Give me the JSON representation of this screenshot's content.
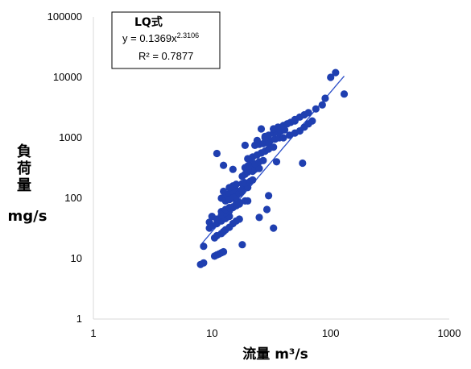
{
  "chart_data": {
    "type": "scatter",
    "title": "",
    "xlabel": "流量 m³/s",
    "ylabel_lines": [
      "負",
      "荷",
      "量",
      "mg/s"
    ],
    "x_scale": "log",
    "y_scale": "log",
    "xlim": [
      1,
      1000
    ],
    "ylim": [
      1,
      100000
    ],
    "x_ticks": [
      "1",
      "10",
      "100",
      "1000"
    ],
    "y_ticks": [
      "1",
      "10",
      "100",
      "1000",
      "10000",
      "100000"
    ],
    "grid": false,
    "marker_color": "#1f3fb0",
    "trend_color": "#2c4fc8",
    "legend": {
      "placement": "top-left",
      "title": "LQ式",
      "equation": "y = 0.1369x",
      "exponent": "2.3106",
      "r2": "R² = 0.7877"
    },
    "trendline": {
      "a": 0.1369,
      "b": 2.3106,
      "x_range": [
        8,
        130
      ]
    },
    "series": [
      {
        "x": [
          8,
          8.5,
          8.5,
          9.5,
          10,
          10.5,
          11,
          11.5,
          12,
          12.5,
          10.5,
          11,
          12,
          12.5,
          13,
          14,
          15,
          16,
          17,
          9.5,
          10,
          11,
          12,
          13,
          14,
          11,
          12,
          13,
          14,
          15,
          16,
          17,
          19,
          12,
          13,
          14,
          15,
          16,
          17,
          12,
          13,
          14,
          15,
          16,
          18,
          13,
          14,
          15,
          16,
          17,
          18,
          20,
          14,
          15,
          16,
          18,
          19,
          21,
          22,
          18,
          19,
          20,
          22,
          23,
          25,
          19,
          20,
          21,
          23,
          25,
          27,
          20,
          22,
          24,
          26,
          28,
          30,
          33,
          23,
          25,
          27,
          29,
          31,
          34,
          37,
          28,
          30,
          33,
          35,
          38,
          41,
          33,
          36,
          40,
          43,
          46,
          50,
          40,
          45,
          50,
          55,
          60,
          65,
          70,
          50,
          55,
          60,
          65,
          75,
          85,
          90,
          100,
          110,
          130,
          58,
          11,
          12.5,
          12.5,
          18,
          20,
          25,
          29,
          30,
          30,
          33,
          33,
          35,
          28,
          24,
          26,
          21,
          19,
          15
        ],
        "y": [
          8,
          8.5,
          16,
          40,
          50,
          11,
          11.5,
          12,
          12.5,
          13,
          22,
          24,
          26,
          28,
          30,
          33,
          38,
          42,
          45,
          32,
          35,
          38,
          42,
          46,
          50,
          45,
          52,
          58,
          62,
          70,
          75,
          80,
          90,
          60,
          65,
          70,
          72,
          80,
          85,
          100,
          110,
          120,
          130,
          135,
          140,
          90,
          95,
          100,
          105,
          120,
          130,
          150,
          150,
          160,
          170,
          175,
          180,
          190,
          200,
          230,
          250,
          270,
          280,
          300,
          310,
          320,
          340,
          350,
          370,
          400,
          420,
          450,
          480,
          520,
          560,
          600,
          650,
          700,
          750,
          780,
          800,
          850,
          900,
          950,
          1000,
          1050,
          1100,
          1200,
          1250,
          1300,
          1350,
          1400,
          1500,
          1600,
          1700,
          1800,
          1900,
          1000,
          1100,
          1200,
          1300,
          1500,
          1700,
          1900,
          2000,
          2200,
          2400,
          2600,
          3000,
          3500,
          4500,
          10000,
          12000,
          5300,
          380,
          550,
          130,
          350,
          17,
          90,
          48,
          65,
          110,
          820,
          32,
          1400,
          400,
          1000,
          900,
          1400,
          450,
          750,
          300
        ]
      }
    ]
  }
}
